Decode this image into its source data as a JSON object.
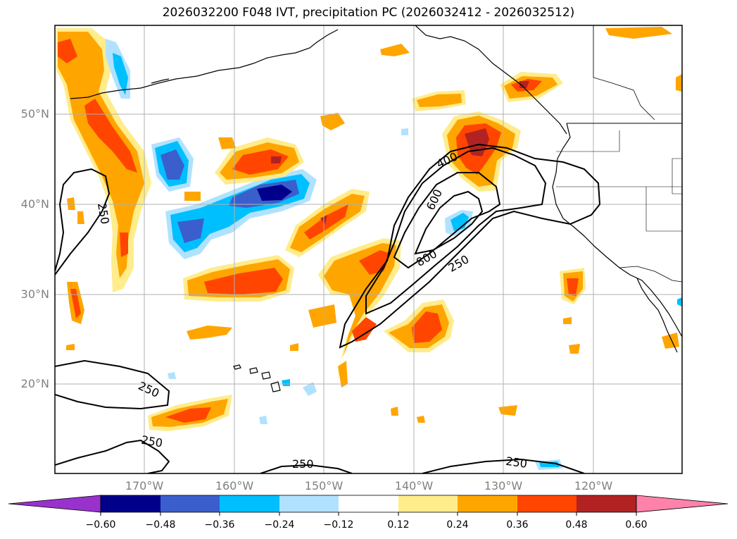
{
  "title": "2026032200 F048 IVT, precipitation PC (2026032412 - 2026032512)",
  "lat_labels": [
    "50°N",
    "40°N",
    "30°N",
    "20°N"
  ],
  "lon_labels": [
    "170°W",
    "160°W",
    "150°W",
    "140°W",
    "130°W",
    "120°W"
  ],
  "contour_labels": [
    "250",
    "400",
    "600",
    "800",
    "250",
    "250",
    "250",
    "250",
    "250"
  ],
  "colorbar": {
    "ticks": [
      "−0.60",
      "−0.48",
      "−0.36",
      "−0.24",
      "−0.12",
      "0.12",
      "0.24",
      "0.36",
      "0.48",
      "0.60"
    ],
    "colors": [
      "#9932CC",
      "#00008B",
      "#3A5FCD",
      "#00BFFF",
      "#B0E2FF",
      "#FFFFFF",
      "#FFEC8B",
      "#FFA500",
      "#FF4500",
      "#B22222",
      "#FF82AB"
    ]
  }
}
